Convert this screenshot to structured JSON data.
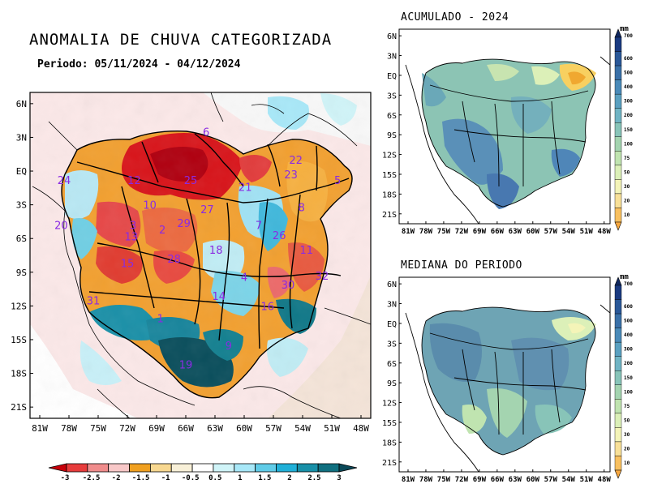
{
  "main_map": {
    "title": "ANOMALIA DE CHUVA CATEGORIZADA",
    "subtitle": "Periodo: 05/11/2024 - 04/12/2024",
    "lat_ticks": [
      "6N",
      "3N",
      "EQ",
      "3S",
      "6S",
      "9S",
      "12S",
      "15S",
      "18S",
      "21S"
    ],
    "lon_ticks": [
      "81W",
      "78W",
      "75W",
      "72W",
      "69W",
      "66W",
      "63W",
      "60W",
      "57W",
      "54W",
      "51W",
      "48W"
    ],
    "basins": [
      {
        "id": "6",
        "lon": -63.9,
        "lat": 3.5
      },
      {
        "id": "22",
        "lon": -54.7,
        "lat": 1.0
      },
      {
        "id": "23",
        "lon": -55.2,
        "lat": -0.3
      },
      {
        "id": "24",
        "lon": -78.5,
        "lat": -0.8
      },
      {
        "id": "12",
        "lon": -71.3,
        "lat": -0.8
      },
      {
        "id": "25",
        "lon": -65.5,
        "lat": -0.8
      },
      {
        "id": "21",
        "lon": -59.9,
        "lat": -1.4
      },
      {
        "id": "5",
        "lon": -50.4,
        "lat": -0.8
      },
      {
        "id": "10",
        "lon": -69.7,
        "lat": -3.0
      },
      {
        "id": "27",
        "lon": -63.8,
        "lat": -3.4
      },
      {
        "id": "8",
        "lon": -54.1,
        "lat": -3.2
      },
      {
        "id": "20",
        "lon": -78.8,
        "lat": -4.8
      },
      {
        "id": "3",
        "lon": -71.4,
        "lat": -4.8
      },
      {
        "id": "2",
        "lon": -68.4,
        "lat": -5.2
      },
      {
        "id": "29",
        "lon": -66.2,
        "lat": -4.6
      },
      {
        "id": "7",
        "lon": -58.5,
        "lat": -4.8
      },
      {
        "id": "26",
        "lon": -56.4,
        "lat": -5.7
      },
      {
        "id": "13",
        "lon": -71.6,
        "lat": -5.8
      },
      {
        "id": "18",
        "lon": -62.9,
        "lat": -7.0
      },
      {
        "id": "11",
        "lon": -53.6,
        "lat": -7.0
      },
      {
        "id": "15",
        "lon": -72.0,
        "lat": -8.2
      },
      {
        "id": "28",
        "lon": -67.2,
        "lat": -7.8
      },
      {
        "id": "4",
        "lon": -60.0,
        "lat": -9.4
      },
      {
        "id": "32",
        "lon": -52.0,
        "lat": -9.3
      },
      {
        "id": "30",
        "lon": -55.5,
        "lat": -10.1
      },
      {
        "id": "14",
        "lon": -62.6,
        "lat": -11.1
      },
      {
        "id": "31",
        "lon": -75.5,
        "lat": -11.5
      },
      {
        "id": "16",
        "lon": -57.6,
        "lat": -12.0
      },
      {
        "id": "1",
        "lon": -68.6,
        "lat": -13.1
      },
      {
        "id": "9",
        "lon": -61.6,
        "lat": -15.5
      },
      {
        "id": "19",
        "lon": -66.0,
        "lat": -17.2
      }
    ],
    "colorbar": {
      "labels": [
        "-3",
        "-2.5",
        "-2",
        "-1.5",
        "-1",
        "-0.5",
        "0.5",
        "1",
        "1.5",
        "2",
        "2.5",
        "3"
      ],
      "colors": [
        "#c8000a",
        "#e83c3c",
        "#f08c8c",
        "#f8c8c8",
        "#f0a020",
        "#f8d890",
        "#f8f0d8",
        "#ffffff",
        "#d0f4f8",
        "#a8e8f8",
        "#60cce8",
        "#20b0d8",
        "#1890a8",
        "#107080",
        "#0a4858"
      ]
    }
  },
  "acumulado": {
    "title": "ACUMULADO - 2024"
  },
  "mediana": {
    "title": "MEDIANA DO PERIODO"
  },
  "small_maps": {
    "lat_ticks": [
      "6N",
      "3N",
      "EQ",
      "3S",
      "6S",
      "9S",
      "12S",
      "15S",
      "18S",
      "21S"
    ],
    "lon_ticks": [
      "81W",
      "78W",
      "75W",
      "72W",
      "69W",
      "66W",
      "63W",
      "60W",
      "57W",
      "54W",
      "51W",
      "48W"
    ]
  },
  "precip_colorbar": {
    "unit": "mm",
    "labels": [
      "700",
      "600",
      "500",
      "400",
      "300",
      "200",
      "150",
      "100",
      "75",
      "50",
      "30",
      "20",
      "10"
    ],
    "colors": [
      "#1a3a80",
      "#2a5898",
      "#3a70a8",
      "#4a8ab8",
      "#5aa0c0",
      "#70b4c4",
      "#88c4b8",
      "#a4d4b0",
      "#c0e4b0",
      "#dcf0b8",
      "#f4f4b8",
      "#f8e098",
      "#f8c060"
    ]
  },
  "colors": {
    "land": "#ffffff",
    "boundary": "#000000",
    "basin_label": "#8a2be2"
  }
}
